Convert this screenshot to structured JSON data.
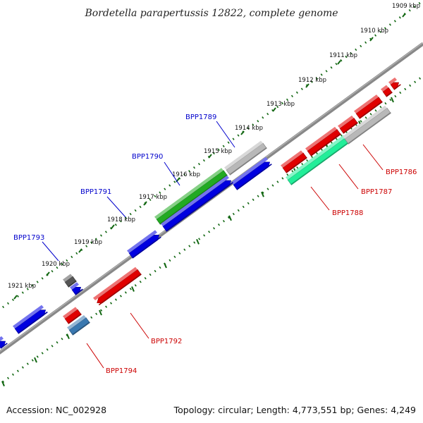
{
  "title": "Bordetella parapertussis 12822, complete genome",
  "footer": {
    "accession": "Accession: NC_002928",
    "topology": "Topology: circular; Length: 4,773,551 bp; Genes: 4,249"
  },
  "colors": {
    "forward_cds": "#0000e0",
    "reverse_cds": "#e00000",
    "green_gene": "#22aa22",
    "teal_gene": "#22ee99",
    "grey_gene": "#b8b8b8",
    "dark_grey_gene": "#555555",
    "steel_gene": "#3a78b0",
    "label_blue": "#0000cc",
    "label_red": "#cc0000",
    "tick_green": "#116611",
    "backbone": "#888888"
  },
  "scale_labels": [
    "1909 kbp",
    "1910 kbp",
    "1911 kbp",
    "1912 kbp",
    "1913 kbp",
    "1914 kbp",
    "1915 kbp",
    "1916 kbp",
    "1917 kbp",
    "1918 kbp",
    "1919 kbp",
    "1920 kbp",
    "1921 kbp"
  ],
  "gene_labels": [
    {
      "id": "BPP1789",
      "color": "blue"
    },
    {
      "id": "BPP1790",
      "color": "blue"
    },
    {
      "id": "BPP1791",
      "color": "blue"
    },
    {
      "id": "BPP1793",
      "color": "blue"
    },
    {
      "id": "BPP1786",
      "color": "red"
    },
    {
      "id": "BPP1787",
      "color": "red"
    },
    {
      "id": "BPP1788",
      "color": "red"
    },
    {
      "id": "BPP1792",
      "color": "red"
    },
    {
      "id": "BPP1794",
      "color": "red"
    }
  ]
}
